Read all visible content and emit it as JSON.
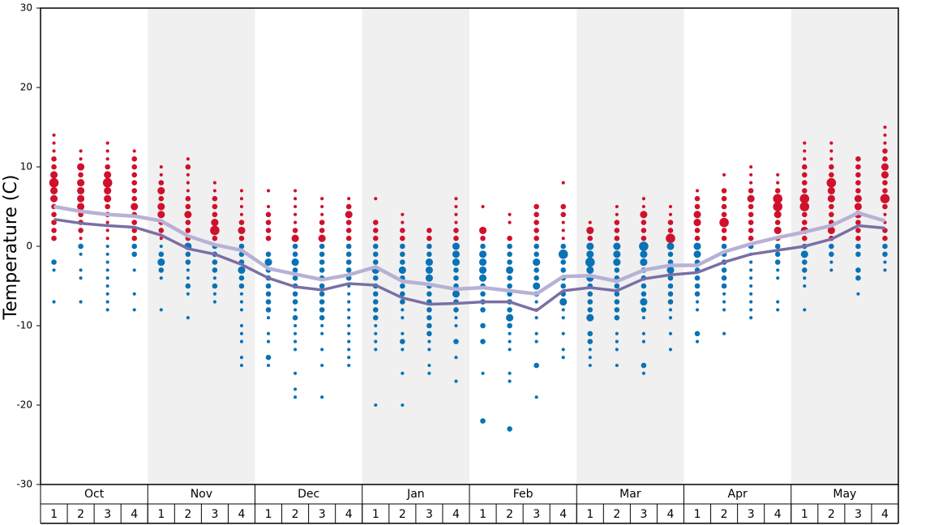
{
  "chart_data": {
    "type": "dotplot",
    "ylabel": "Temperature (C)",
    "ylim": [
      -30,
      30
    ],
    "yticks": [
      30,
      20,
      10,
      0,
      -10,
      -20,
      -30
    ],
    "months": [
      "Oct",
      "Nov",
      "Dec",
      "Jan",
      "Feb",
      "Mar",
      "Apr",
      "May"
    ],
    "weeks": [
      "1",
      "2",
      "3",
      "4"
    ],
    "shade_color": "#f0f0f0",
    "warm_color": "#d0112b",
    "cold_color": "#0a72b5",
    "lines": [
      {
        "color": "#b7b1d6",
        "values": [
          5,
          4.4,
          4,
          3.8,
          3.2,
          1.3,
          0.2,
          -0.5,
          -2.8,
          -3.5,
          -4.2,
          -3.6,
          -2.6,
          -4.4,
          -4.8,
          -5.4,
          -5.2,
          -5.6,
          -6,
          -3.8,
          -3.7,
          -4.4,
          -3,
          -2.4,
          -2.4,
          -0.7,
          0.3,
          1.1,
          1.8,
          2.6,
          4.2,
          3.2
        ]
      },
      {
        "color": "#7b6ea5",
        "values": [
          3.4,
          2.9,
          2.6,
          2.4,
          1.4,
          -0.3,
          -1,
          -2.3,
          -4,
          -5.1,
          -5.5,
          -4.7,
          -4.9,
          -6.5,
          -7.3,
          -7.2,
          -7,
          -7,
          -8.1,
          -5.6,
          -5.2,
          -5.6,
          -4.1,
          -3.6,
          -3.3,
          -2,
          -1,
          -0.5,
          0,
          0.9,
          2.6,
          2.3
        ]
      }
    ],
    "dots": [
      {
        "t": [
          14,
          13,
          12,
          11,
          10,
          9,
          8,
          7,
          6,
          5,
          4,
          3,
          2,
          1,
          -2,
          -3,
          -7
        ],
        "s": [
          1,
          1,
          1,
          2,
          2,
          3,
          4,
          3,
          3,
          2,
          2,
          2,
          2,
          2,
          2,
          1,
          1
        ]
      },
      {
        "t": [
          12,
          11,
          10,
          9,
          8,
          7,
          6,
          5,
          4,
          3,
          2,
          1,
          0,
          -1,
          -3,
          -4,
          -7
        ],
        "s": [
          1,
          1,
          3,
          2,
          3,
          3,
          3,
          3,
          2,
          2,
          2,
          1,
          2,
          1,
          1,
          1,
          1
        ]
      },
      {
        "t": [
          13,
          12,
          11,
          10,
          9,
          8,
          7,
          6,
          5,
          4,
          3,
          2,
          1,
          0,
          -1,
          -2,
          -3,
          -4,
          -5,
          -6,
          -7,
          -8
        ],
        "s": [
          1,
          1,
          1,
          2,
          3,
          4,
          3,
          3,
          2,
          2,
          1,
          1,
          1,
          1,
          1,
          1,
          1,
          1,
          1,
          1,
          1,
          1
        ]
      },
      {
        "t": [
          12,
          11,
          10,
          9,
          8,
          7,
          6,
          5,
          4,
          3,
          2,
          1,
          0,
          -1,
          -3,
          -6,
          -8
        ],
        "s": [
          1,
          2,
          2,
          2,
          2,
          2,
          2,
          3,
          2,
          2,
          2,
          2,
          2,
          2,
          1,
          1,
          1
        ]
      },
      {
        "t": [
          10,
          9,
          8,
          7,
          6,
          5,
          4,
          3,
          2,
          1,
          0,
          -1,
          -2,
          -3,
          -4,
          -8
        ],
        "s": [
          1,
          1,
          2,
          3,
          2,
          3,
          3,
          2,
          2,
          1,
          1,
          2,
          3,
          2,
          1,
          1
        ]
      },
      {
        "t": [
          11,
          10,
          9,
          8,
          7,
          6,
          5,
          4,
          3,
          2,
          1,
          0,
          -1,
          -2,
          -3,
          -4,
          -5,
          -6,
          -9
        ],
        "s": [
          1,
          2,
          1,
          1,
          1,
          2,
          2,
          3,
          2,
          2,
          2,
          3,
          2,
          2,
          1,
          1,
          2,
          1,
          1
        ]
      },
      {
        "t": [
          8,
          7,
          6,
          5,
          4,
          3,
          2,
          1,
          0,
          -1,
          -2,
          -3,
          -4,
          -5,
          -6,
          -7
        ],
        "s": [
          1,
          1,
          2,
          2,
          2,
          3,
          4,
          2,
          2,
          2,
          2,
          2,
          1,
          2,
          1,
          1
        ]
      },
      {
        "t": [
          7,
          6,
          5,
          4,
          3,
          2,
          1,
          0,
          -1,
          -2,
          -3,
          -4,
          -5,
          -6,
          -7,
          -8,
          -10,
          -11,
          -12,
          -14,
          -15
        ],
        "s": [
          1,
          1,
          1,
          1,
          2,
          3,
          2,
          2,
          2,
          2,
          3,
          2,
          2,
          1,
          1,
          1,
          1,
          1,
          1,
          1,
          1
        ]
      },
      {
        "t": [
          7,
          5,
          4,
          3,
          2,
          1,
          -1,
          -2,
          -3,
          -4,
          -5,
          -6,
          -7,
          -8,
          -9,
          -11,
          -12,
          -14,
          -15
        ],
        "s": [
          1,
          1,
          2,
          2,
          2,
          2,
          2,
          3,
          2,
          2,
          2,
          2,
          2,
          2,
          1,
          1,
          1,
          2,
          1
        ]
      },
      {
        "t": [
          7,
          6,
          5,
          4,
          3,
          2,
          1,
          0,
          -1,
          -2,
          -3,
          -4,
          -5,
          -6,
          -7,
          -8,
          -9,
          -10,
          -11,
          -12,
          -13,
          -16,
          -18,
          -19
        ],
        "s": [
          1,
          1,
          1,
          1,
          1,
          2,
          3,
          2,
          2,
          3,
          2,
          2,
          2,
          2,
          2,
          1,
          2,
          1,
          1,
          1,
          1,
          1,
          1,
          1
        ]
      },
      {
        "t": [
          6,
          5,
          4,
          3,
          2,
          1,
          0,
          -1,
          -2,
          -3,
          -4,
          -5,
          -6,
          -7,
          -8,
          -9,
          -10,
          -11,
          -13,
          -15,
          -19
        ],
        "s": [
          1,
          1,
          1,
          2,
          2,
          3,
          2,
          2,
          2,
          2,
          2,
          2,
          2,
          2,
          2,
          2,
          1,
          1,
          1,
          1,
          1
        ]
      },
      {
        "t": [
          6,
          5,
          4,
          3,
          2,
          1,
          0,
          -1,
          -2,
          -3,
          -4,
          -5,
          -6,
          -7,
          -8,
          -9,
          -10,
          -11,
          -12,
          -13,
          -14,
          -15
        ],
        "s": [
          1,
          2,
          3,
          2,
          2,
          2,
          2,
          2,
          2,
          2,
          2,
          1,
          1,
          1,
          1,
          1,
          1,
          1,
          1,
          1,
          1,
          1
        ]
      },
      {
        "t": [
          6,
          3,
          2,
          1,
          0,
          -1,
          -2,
          -3,
          -4,
          -5,
          -6,
          -7,
          -8,
          -9,
          -10,
          -11,
          -12,
          -13,
          -20
        ],
        "s": [
          1,
          2,
          2,
          2,
          2,
          2,
          2,
          3,
          2,
          2,
          2,
          2,
          2,
          2,
          1,
          1,
          1,
          1,
          1
        ]
      },
      {
        "t": [
          4,
          3,
          2,
          1,
          0,
          -1,
          -2,
          -3,
          -4,
          -5,
          -6,
          -7,
          -8,
          -9,
          -11,
          -12,
          -13,
          -16,
          -20
        ],
        "s": [
          1,
          1,
          2,
          2,
          2,
          2,
          2,
          3,
          2,
          2,
          2,
          2,
          1,
          1,
          1,
          2,
          1,
          1,
          1
        ]
      },
      {
        "t": [
          2,
          1,
          0,
          -1,
          -2,
          -3,
          -4,
          -5,
          -6,
          -7,
          -8,
          -9,
          -10,
          -11,
          -12,
          -13,
          -15,
          -16
        ],
        "s": [
          2,
          2,
          2,
          2,
          3,
          3,
          3,
          2,
          2,
          2,
          2,
          2,
          2,
          2,
          1,
          1,
          1,
          1
        ]
      },
      {
        "t": [
          6,
          5,
          4,
          3,
          2,
          1,
          0,
          -1,
          -2,
          -3,
          -4,
          -5,
          -6,
          -7,
          -8,
          -9,
          -10,
          -12,
          -14,
          -17
        ],
        "s": [
          1,
          1,
          1,
          1,
          2,
          2,
          3,
          3,
          3,
          2,
          2,
          2,
          3,
          2,
          2,
          1,
          1,
          2,
          1,
          1
        ]
      },
      {
        "t": [
          5,
          2,
          1,
          0,
          -1,
          -2,
          -3,
          -4,
          -5,
          -6,
          -7,
          -8,
          -10,
          -12,
          -16,
          -22
        ],
        "s": [
          1,
          3,
          2,
          2,
          3,
          3,
          3,
          3,
          2,
          2,
          2,
          2,
          2,
          2,
          1,
          2
        ]
      },
      {
        "t": [
          4,
          3,
          1,
          0,
          -1,
          -2,
          -3,
          -4,
          -5,
          -6,
          -7,
          -8,
          -9,
          -10,
          -11,
          -12,
          -13,
          -16,
          -17,
          -23
        ],
        "s": [
          1,
          1,
          2,
          2,
          2,
          2,
          3,
          2,
          2,
          2,
          2,
          2,
          3,
          2,
          1,
          1,
          1,
          1,
          1,
          2
        ]
      },
      {
        "t": [
          5,
          4,
          3,
          2,
          1,
          0,
          -1,
          -2,
          -3,
          -4,
          -5,
          -6,
          -7,
          -8,
          -9,
          -11,
          -12,
          -15,
          -19
        ],
        "s": [
          2,
          2,
          2,
          2,
          2,
          2,
          2,
          3,
          2,
          2,
          3,
          2,
          1,
          1,
          1,
          1,
          1,
          2,
          1
        ]
      },
      {
        "t": [
          8,
          5,
          4,
          3,
          2,
          1,
          0,
          -1,
          -2,
          -3,
          -4,
          -5,
          -6,
          -7,
          -8,
          -9,
          -11,
          -13,
          -14
        ],
        "s": [
          1,
          2,
          2,
          1,
          1,
          1,
          2,
          4,
          2,
          2,
          2,
          2,
          2,
          3,
          1,
          1,
          1,
          1,
          1
        ]
      },
      {
        "t": [
          3,
          2,
          1,
          0,
          -1,
          -2,
          -3,
          -4,
          -5,
          -6,
          -7,
          -8,
          -9,
          -11,
          -12,
          -13,
          -14,
          -15
        ],
        "s": [
          1,
          3,
          2,
          3,
          3,
          4,
          3,
          3,
          2,
          2,
          2,
          2,
          3,
          2,
          2,
          1,
          1,
          1
        ]
      },
      {
        "t": [
          5,
          4,
          3,
          2,
          1,
          0,
          -1,
          -2,
          -3,
          -4,
          -5,
          -6,
          -7,
          -8,
          -9,
          -11,
          -12,
          -13,
          -15
        ],
        "s": [
          1,
          1,
          2,
          2,
          2,
          3,
          3,
          3,
          2,
          2,
          2,
          2,
          2,
          2,
          2,
          1,
          1,
          1,
          1
        ]
      },
      {
        "t": [
          6,
          5,
          4,
          3,
          2,
          1,
          0,
          -1,
          -2,
          -3,
          -4,
          -5,
          -6,
          -7,
          -8,
          -9,
          -11,
          -12,
          -15,
          -16
        ],
        "s": [
          1,
          1,
          3,
          2,
          2,
          2,
          4,
          3,
          3,
          2,
          2,
          2,
          2,
          3,
          2,
          1,
          1,
          1,
          2,
          1
        ]
      },
      {
        "t": [
          5,
          4,
          3,
          2,
          1,
          0,
          -1,
          -2,
          -3,
          -4,
          -5,
          -6,
          -7,
          -8,
          -9,
          -11,
          -13
        ],
        "s": [
          1,
          1,
          2,
          2,
          4,
          3,
          2,
          2,
          3,
          2,
          2,
          2,
          2,
          1,
          1,
          1,
          1
        ]
      },
      {
        "t": [
          7,
          6,
          5,
          4,
          3,
          2,
          1,
          0,
          -1,
          -2,
          -3,
          -4,
          -5,
          -6,
          -7,
          -8,
          -11,
          -12
        ],
        "s": [
          1,
          2,
          2,
          3,
          3,
          2,
          2,
          3,
          3,
          2,
          2,
          2,
          2,
          2,
          1,
          1,
          2,
          1
        ]
      },
      {
        "t": [
          9,
          7,
          6,
          5,
          4,
          3,
          2,
          1,
          0,
          -1,
          -2,
          -3,
          -4,
          -5,
          -6,
          -7,
          -8,
          -11
        ],
        "s": [
          1,
          2,
          2,
          2,
          2,
          4,
          2,
          2,
          2,
          2,
          2,
          2,
          2,
          2,
          1,
          1,
          1,
          1
        ]
      },
      {
        "t": [
          10,
          9,
          8,
          7,
          6,
          5,
          4,
          3,
          2,
          1,
          0,
          -1,
          -2,
          -3,
          -4,
          -5,
          -6,
          -7,
          -8,
          -9
        ],
        "s": [
          1,
          1,
          1,
          2,
          3,
          2,
          2,
          2,
          2,
          2,
          2,
          1,
          1,
          1,
          1,
          1,
          1,
          1,
          1,
          1
        ]
      },
      {
        "t": [
          9,
          8,
          7,
          6,
          5,
          4,
          3,
          2,
          1,
          0,
          -1,
          -2,
          -3,
          -4,
          -7,
          -8
        ],
        "s": [
          1,
          1,
          2,
          4,
          4,
          3,
          2,
          3,
          2,
          2,
          2,
          2,
          1,
          1,
          1,
          1
        ]
      },
      {
        "t": [
          13,
          12,
          11,
          10,
          9,
          8,
          7,
          6,
          5,
          4,
          3,
          2,
          1,
          0,
          -1,
          -2,
          -3,
          -4,
          -5,
          -8
        ],
        "s": [
          1,
          1,
          1,
          2,
          2,
          2,
          2,
          4,
          4,
          2,
          2,
          3,
          2,
          2,
          3,
          2,
          2,
          1,
          1,
          1
        ]
      },
      {
        "t": [
          13,
          12,
          11,
          10,
          9,
          8,
          7,
          6,
          5,
          4,
          3,
          2,
          1,
          0,
          -1,
          -2,
          -3
        ],
        "s": [
          1,
          1,
          1,
          2,
          2,
          4,
          3,
          3,
          2,
          2,
          2,
          3,
          2,
          2,
          2,
          1,
          1
        ]
      },
      {
        "t": [
          11,
          10,
          9,
          8,
          7,
          6,
          5,
          4,
          3,
          2,
          1,
          0,
          -1,
          -3,
          -4,
          -6
        ],
        "s": [
          2,
          2,
          2,
          2,
          2,
          3,
          3,
          3,
          2,
          2,
          2,
          2,
          2,
          2,
          2,
          1
        ]
      },
      {
        "t": [
          15,
          14,
          13,
          12,
          11,
          10,
          9,
          8,
          7,
          6,
          5,
          4,
          3,
          2,
          1,
          0,
          -1,
          -2,
          -3
        ],
        "s": [
          1,
          1,
          1,
          2,
          2,
          3,
          3,
          2,
          2,
          4,
          2,
          1,
          1,
          2,
          2,
          2,
          2,
          1,
          1
        ]
      }
    ]
  }
}
